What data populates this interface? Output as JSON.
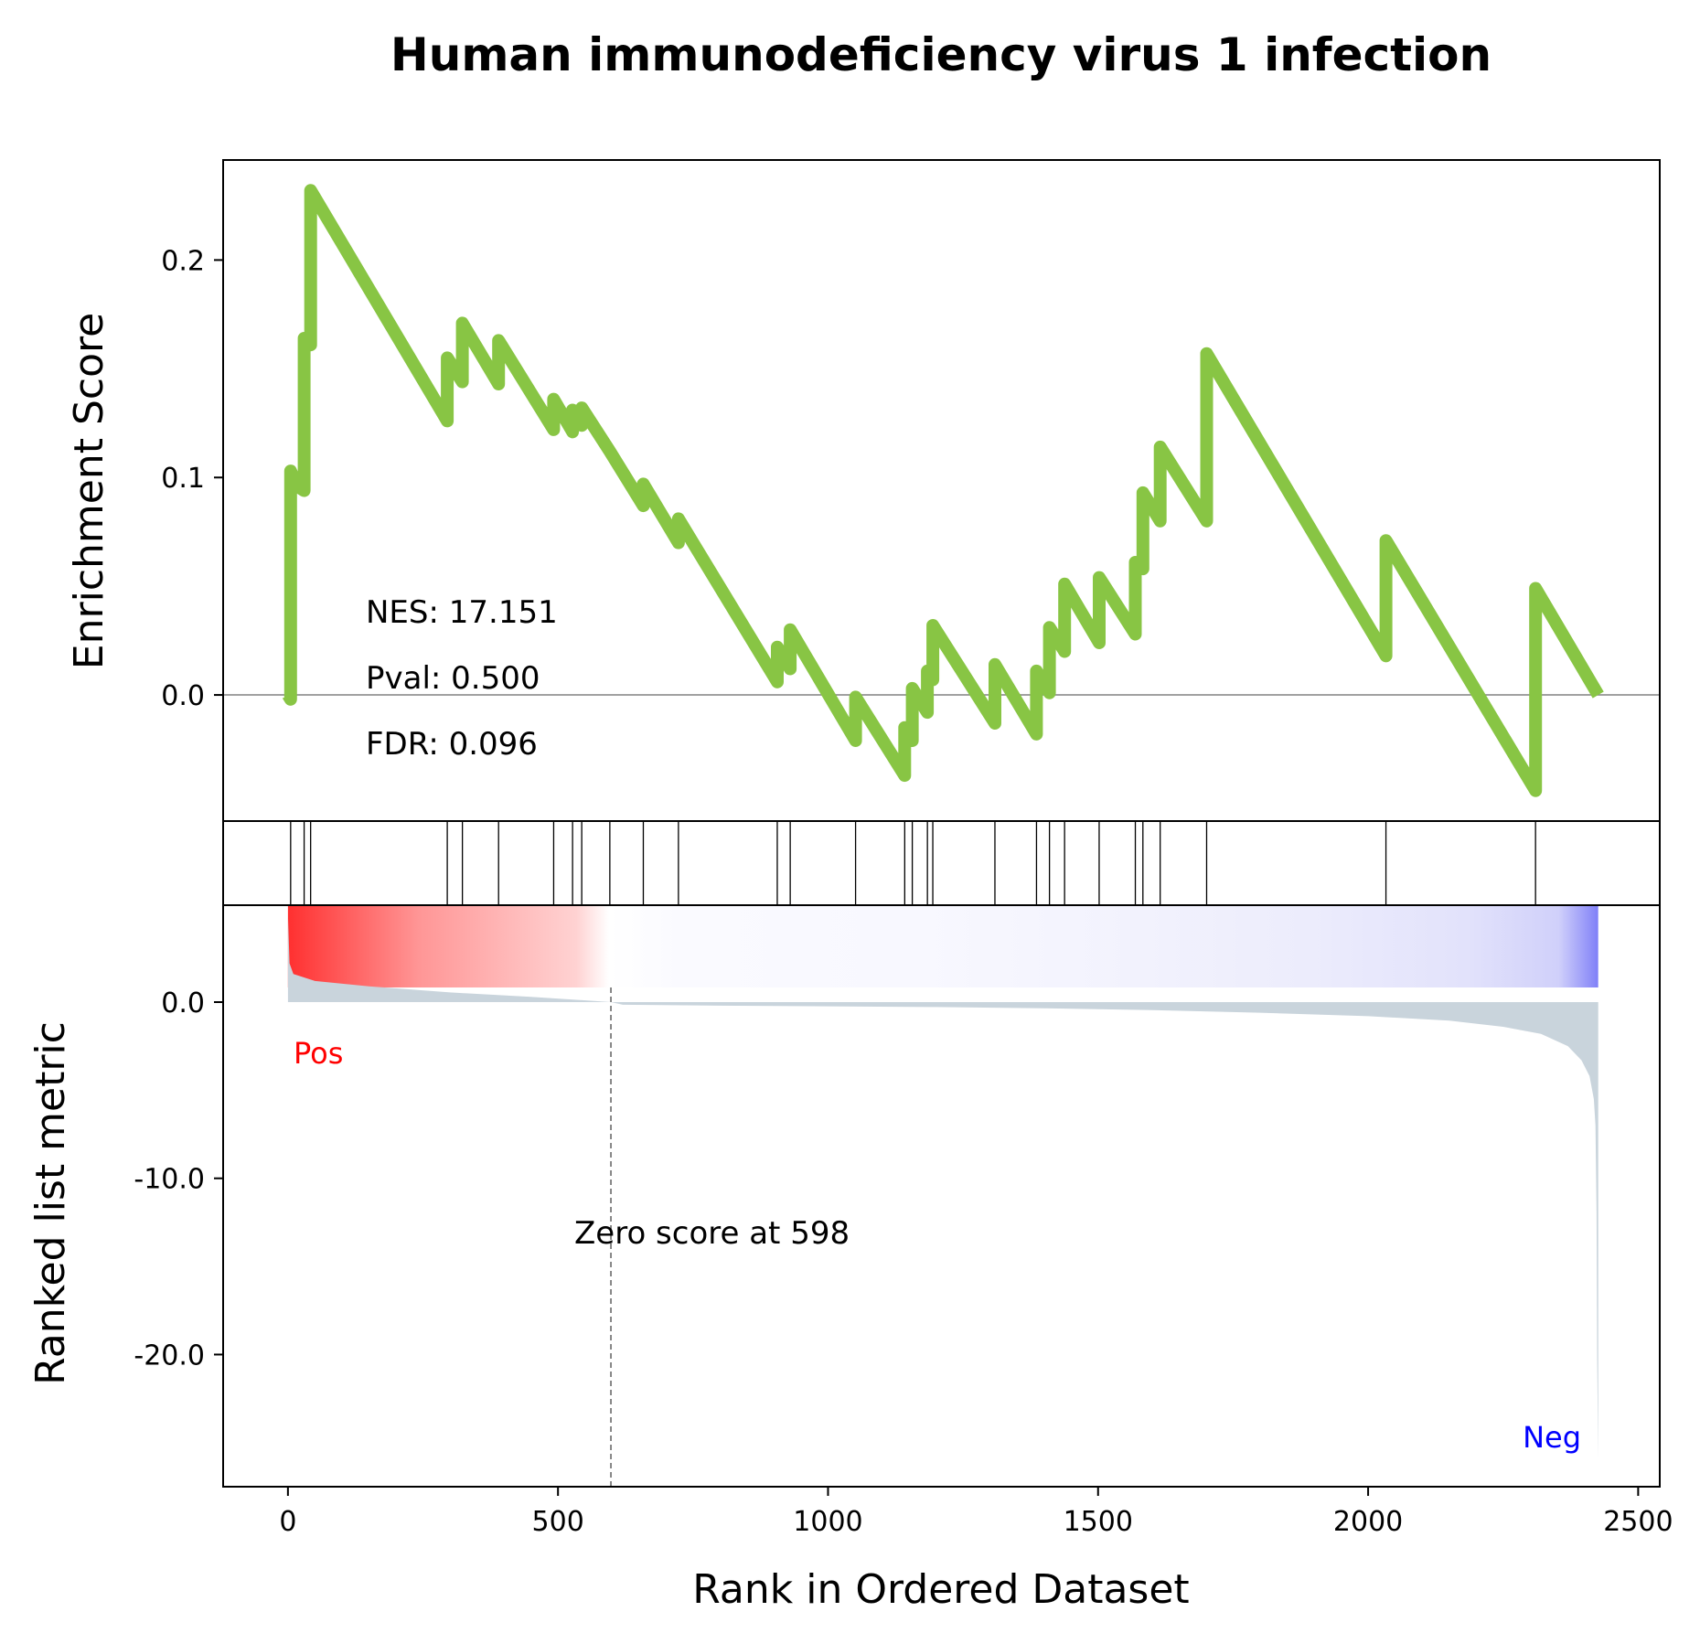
{
  "chart_data": {
    "type": "line",
    "title": "Human immunodeficiency virus 1 infection",
    "xlabel": "Rank in Ordered Dataset",
    "ylabel_top": "Enrichment Score",
    "ylabel_bottom": "Ranked list metric",
    "xlim": [
      -120,
      2540
    ],
    "x_ticks": [
      0,
      500,
      1000,
      1500,
      2000,
      2500
    ],
    "x_tick_labels": [
      "0",
      "500",
      "1000",
      "1500",
      "2000",
      "2500"
    ],
    "es_ylim": [
      -0.058,
      0.246
    ],
    "es_ticks": [
      0.0,
      0.1,
      0.2
    ],
    "es_tick_labels": [
      "0.0",
      "0.1",
      "0.2"
    ],
    "rank_ylim": [
      -27.5,
      5.5
    ],
    "rank_ticks": [
      0,
      -10,
      -20
    ],
    "rank_tick_labels": [
      "0.0",
      "-10.0",
      "-20.0"
    ],
    "line_color": "#88c544",
    "metric_fill_color": "#c9d4dc",
    "stats": {
      "nes": "NES: 17.151",
      "pval": "Pval: 0.500",
      "fdr": "FDR: 0.096"
    },
    "pos_label": "Pos",
    "neg_label": "Neg",
    "zero_score_text": "Zero score at 598",
    "zero_score_rank": 598,
    "n_genes": 2426,
    "hits": [
      5,
      30,
      42,
      295,
      323,
      390,
      492,
      527,
      544,
      596,
      658,
      723,
      906,
      930,
      1051,
      1142,
      1156,
      1184,
      1194,
      1309,
      1386,
      1410,
      1438,
      1502,
      1569,
      1583,
      1615,
      1701,
      2033,
      2310
    ],
    "es_curve": [
      [
        0,
        0.0
      ],
      [
        5,
        -0.002
      ],
      [
        5,
        0.103
      ],
      [
        17,
        0.096
      ],
      [
        30,
        0.094
      ],
      [
        30,
        0.164
      ],
      [
        42,
        0.161
      ],
      [
        42,
        0.232
      ],
      [
        295,
        0.126
      ],
      [
        295,
        0.155
      ],
      [
        323,
        0.144
      ],
      [
        323,
        0.171
      ],
      [
        390,
        0.143
      ],
      [
        390,
        0.163
      ],
      [
        492,
        0.122
      ],
      [
        492,
        0.136
      ],
      [
        527,
        0.121
      ],
      [
        527,
        0.131
      ],
      [
        544,
        0.124
      ],
      [
        544,
        0.132
      ],
      [
        596,
        0.112
      ],
      [
        658,
        0.087
      ],
      [
        658,
        0.097
      ],
      [
        723,
        0.07
      ],
      [
        723,
        0.081
      ],
      [
        906,
        0.006
      ],
      [
        906,
        0.022
      ],
      [
        930,
        0.012
      ],
      [
        930,
        0.03
      ],
      [
        1051,
        -0.021
      ],
      [
        1051,
        -0.001
      ],
      [
        1142,
        -0.037
      ],
      [
        1142,
        -0.015
      ],
      [
        1156,
        -0.021
      ],
      [
        1156,
        0.003
      ],
      [
        1184,
        -0.008
      ],
      [
        1184,
        0.011
      ],
      [
        1194,
        0.007
      ],
      [
        1194,
        0.032
      ],
      [
        1309,
        -0.013
      ],
      [
        1309,
        0.014
      ],
      [
        1386,
        -0.018
      ],
      [
        1386,
        0.011
      ],
      [
        1410,
        0.001
      ],
      [
        1410,
        0.031
      ],
      [
        1438,
        0.02
      ],
      [
        1438,
        0.051
      ],
      [
        1502,
        0.024
      ],
      [
        1502,
        0.054
      ],
      [
        1569,
        0.028
      ],
      [
        1569,
        0.061
      ],
      [
        1583,
        0.058
      ],
      [
        1583,
        0.093
      ],
      [
        1615,
        0.08
      ],
      [
        1615,
        0.114
      ],
      [
        1701,
        0.08
      ],
      [
        1701,
        0.157
      ],
      [
        2033,
        0.018
      ],
      [
        2033,
        0.071
      ],
      [
        2310,
        -0.044
      ],
      [
        2310,
        0.049
      ],
      [
        2426,
        0.0
      ]
    ],
    "rank_metric": [
      [
        0,
        4.9
      ],
      [
        3,
        2.2
      ],
      [
        10,
        1.6
      ],
      [
        50,
        1.2
      ],
      [
        150,
        0.9
      ],
      [
        300,
        0.55
      ],
      [
        450,
        0.3
      ],
      [
        598,
        0.0
      ],
      [
        620,
        -0.15
      ],
      [
        800,
        -0.2
      ],
      [
        1000,
        -0.24
      ],
      [
        1200,
        -0.28
      ],
      [
        1400,
        -0.35
      ],
      [
        1600,
        -0.45
      ],
      [
        1800,
        -0.6
      ],
      [
        2000,
        -0.8
      ],
      [
        2150,
        -1.05
      ],
      [
        2250,
        -1.4
      ],
      [
        2320,
        -1.8
      ],
      [
        2370,
        -2.5
      ],
      [
        2395,
        -3.3
      ],
      [
        2410,
        -4.2
      ],
      [
        2418,
        -5.5
      ],
      [
        2421,
        -7
      ],
      [
        2423,
        -12
      ],
      [
        2424,
        -20
      ],
      [
        2426,
        -26.0
      ]
    ]
  }
}
